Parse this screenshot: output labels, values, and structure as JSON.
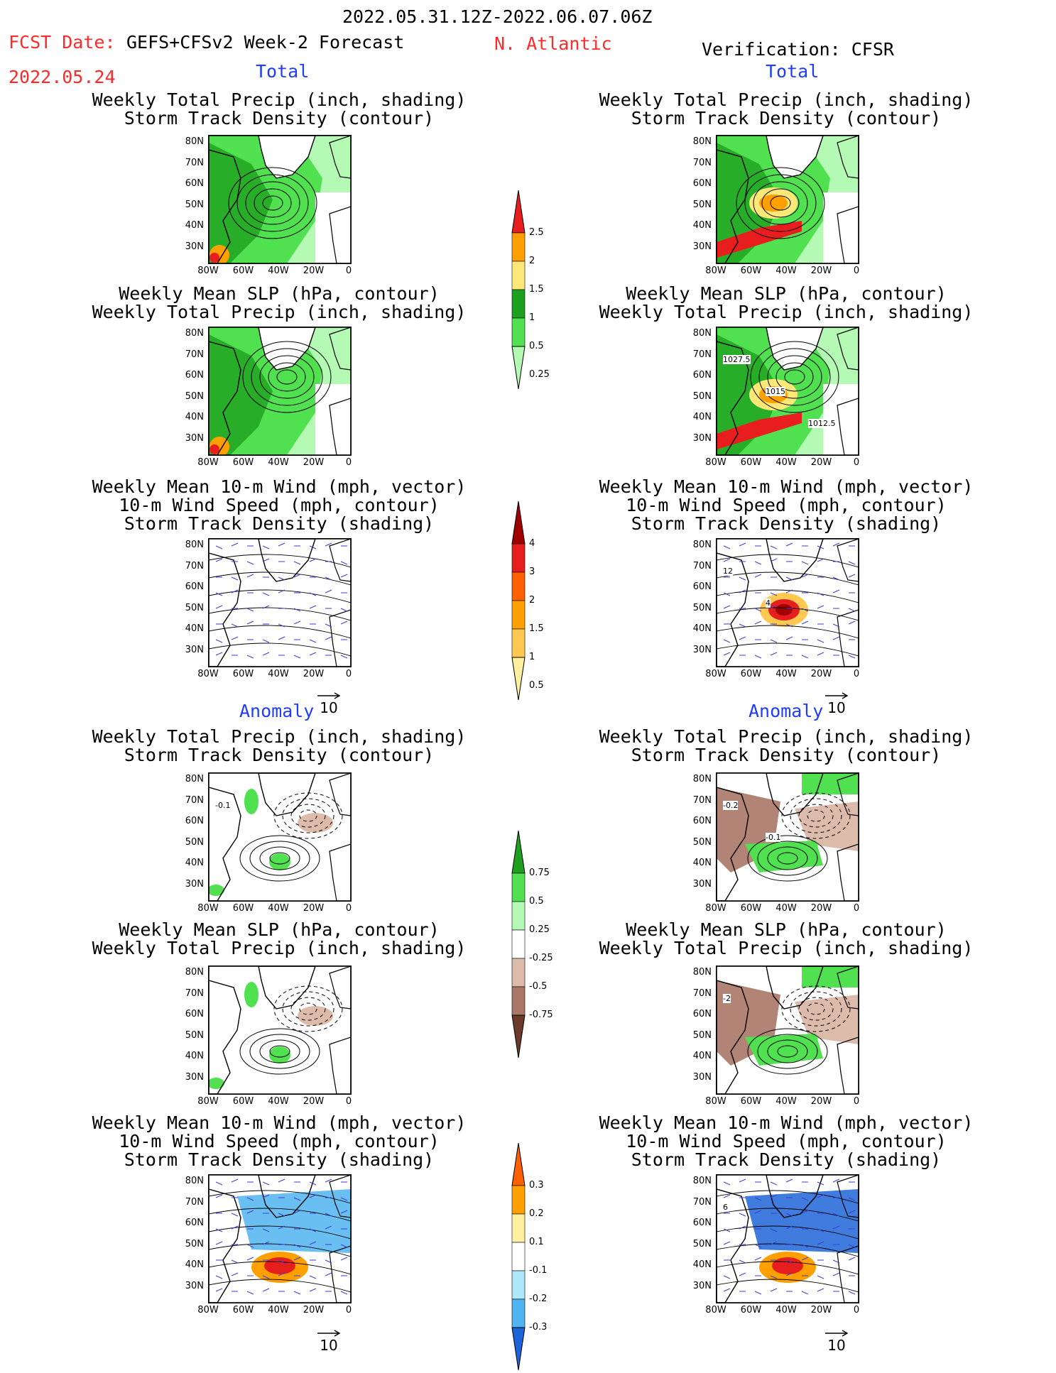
{
  "header": {
    "period": "2022.05.31.12Z-2022.06.07.06Z",
    "fcst_date_label": "FCST Date:",
    "fcst_date": "2022.05.24",
    "model": "GEFS+CFSv2 Week-2 Forecast",
    "region": "N. Atlantic",
    "verification": "Verification: CFSR"
  },
  "sections": {
    "total": "Total",
    "anomaly": "Anomaly"
  },
  "titles": {
    "precip": [
      "Weekly Total Precip (inch, shading)",
      "Storm Track Density (contour)"
    ],
    "slp": [
      "Weekly Mean SLP (hPa, contour)",
      "Weekly Total Precip (inch, shading)"
    ],
    "wind": [
      "Weekly Mean 10-m Wind (mph, vector)",
      "10-m Wind Speed (mph, contour)",
      "Storm Track Density (shading)"
    ]
  },
  "axes": {
    "lat_labels": [
      "80N",
      "70N",
      "60N",
      "50N",
      "40N",
      "30N"
    ],
    "lon_labels": [
      "80W",
      "60W",
      "40W",
      "20W",
      "0"
    ]
  },
  "vector_ref": "10",
  "colorbars": {
    "total_precip": [
      "2.5",
      "2",
      "1.5",
      "1",
      "0.5",
      "0.25"
    ],
    "total_storm": [
      "4",
      "3",
      "2",
      "1.5",
      "1",
      "0.5"
    ],
    "anom_precip": [
      "0.75",
      "0.5",
      "0.25",
      "-0.25",
      "-0.5",
      "-0.75"
    ],
    "anom_storm": [
      "0.3",
      "0.2",
      "0.1",
      "-0.1",
      "-0.2",
      "-0.3"
    ]
  },
  "contour_labels": {
    "cfsr_slp_total": [
      "1027.5",
      "1015",
      "1012.5"
    ],
    "cfsr_wind_total": [
      "12",
      "4"
    ],
    "fcst_precip_anom": [
      "-0.1"
    ],
    "cfsr_precip_anom": [
      "-0.2",
      "-0.1"
    ],
    "cfsr_slp_anom": [
      "-2"
    ],
    "cfsr_wind_anom": [
      "6"
    ]
  },
  "colors": {
    "title_red": "#ff2a2a",
    "section_blue": "#1f3cff",
    "precip_greens": [
      "#b4fab4",
      "#50e050",
      "#1ea01e"
    ],
    "precip_yellow_red": [
      "#ffe878",
      "#ffa000",
      "#e81e1e"
    ],
    "storm_reds": [
      "#fff0a0",
      "#ffc850",
      "#ffa000",
      "#ff6000",
      "#e61e1e",
      "#a00000"
    ],
    "anom_browns": [
      "#ddbbaa",
      "#aa7766",
      "#6b3a2a"
    ],
    "anom_blues": [
      "#aee8f8",
      "#50b4f0",
      "#1e64d8"
    ]
  }
}
